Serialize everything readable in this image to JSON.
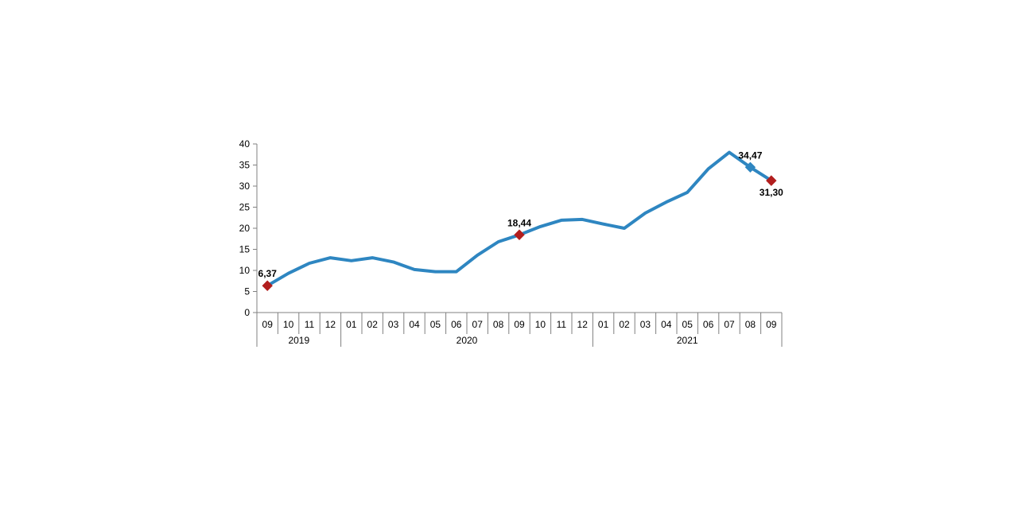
{
  "chart_data": {
    "type": "line",
    "title": "",
    "xlabel": "",
    "ylabel": "",
    "ylim": [
      0,
      40
    ],
    "yticks": [
      "0",
      "5",
      "10",
      "15",
      "20",
      "25",
      "30",
      "35",
      "40"
    ],
    "grid": false,
    "legend": "none",
    "months": [
      "09",
      "10",
      "11",
      "12",
      "01",
      "02",
      "03",
      "04",
      "05",
      "06",
      "07",
      "08",
      "09",
      "10",
      "11",
      "12",
      "01",
      "02",
      "03",
      "04",
      "05",
      "06",
      "07",
      "08",
      "09"
    ],
    "year_groups": [
      {
        "label": "2019",
        "start": 0,
        "end": 3
      },
      {
        "label": "2020",
        "start": 4,
        "end": 15
      },
      {
        "label": "2021",
        "start": 16,
        "end": 24
      }
    ],
    "series": [
      {
        "values": [
          6.37,
          9.3,
          11.7,
          13.0,
          12.3,
          13.0,
          12.0,
          10.2,
          9.7,
          9.7,
          13.6,
          16.8,
          18.44,
          20.4,
          21.9,
          22.1,
          21.0,
          20.0,
          23.6,
          26.2,
          28.5,
          34.1,
          38.0,
          34.47,
          31.3
        ],
        "color": "#2e86c1"
      }
    ],
    "highlights": [
      {
        "index": 0,
        "label": "6,37",
        "color": "#b21e1e",
        "label_pos": "above"
      },
      {
        "index": 12,
        "label": "18,44",
        "color": "#b21e1e",
        "label_pos": "above"
      },
      {
        "index": 23,
        "label": "34,47",
        "color": "#2e86c1",
        "label_pos": "above"
      },
      {
        "index": 24,
        "label": "31,30",
        "color": "#b21e1e",
        "label_pos": "below"
      }
    ],
    "colors": {
      "line": "#2e86c1",
      "axis": "#808080",
      "marker": "#b21e1e"
    }
  }
}
